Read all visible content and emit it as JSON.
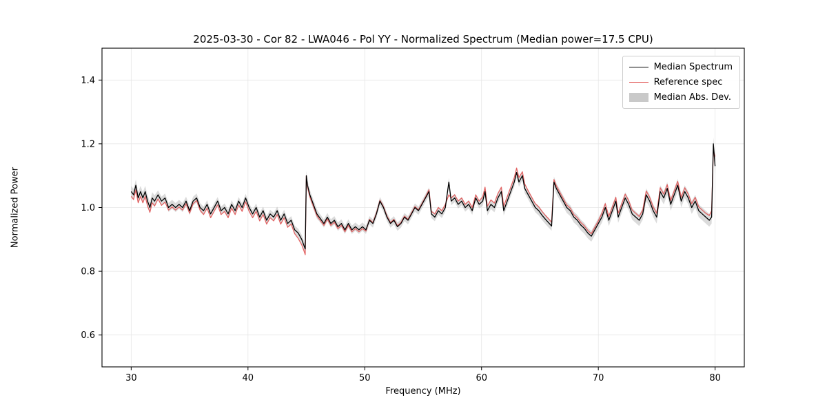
{
  "legend": {
    "items": [
      {
        "label": "Median Spectrum",
        "type": "line",
        "color": "#000000"
      },
      {
        "label": "Reference spec",
        "type": "line",
        "color": "#e04b4b"
      },
      {
        "label": "Median Abs. Dev.",
        "type": "patch",
        "color": "#c9c9c9"
      }
    ]
  },
  "chart_data": {
    "type": "line",
    "title": "2025-03-30 - Cor 82 - LWA046 - Pol YY - Normalized Spectrum (Median power=17.5 CPU)",
    "xlabel": "Frequency (MHz)",
    "ylabel": "Normalized Power",
    "xlim": [
      27.5,
      82.5
    ],
    "ylim": [
      0.5,
      1.5
    ],
    "xticks": [
      30,
      40,
      50,
      60,
      70,
      80
    ],
    "yticks": [
      0.6,
      0.8,
      1.0,
      1.2,
      1.4
    ],
    "grid": true,
    "x": [
      30,
      30.2,
      30.4,
      30.6,
      30.8,
      31,
      31.2,
      31.4,
      31.6,
      31.8,
      32,
      32.3,
      32.6,
      32.9,
      33.2,
      33.5,
      33.8,
      34.1,
      34.4,
      34.7,
      35,
      35.3,
      35.6,
      35.9,
      36.2,
      36.5,
      36.8,
      37.1,
      37.4,
      37.7,
      38,
      38.3,
      38.6,
      38.9,
      39.2,
      39.5,
      39.8,
      40.1,
      40.4,
      40.7,
      41,
      41.3,
      41.6,
      41.9,
      42.2,
      42.5,
      42.8,
      43.1,
      43.4,
      43.7,
      44,
      44.3,
      44.6,
      44.8,
      44.9,
      45,
      45.1,
      45.3,
      45.5,
      45.7,
      45.9,
      46.1,
      46.3,
      46.5,
      46.8,
      47.1,
      47.4,
      47.7,
      48,
      48.3,
      48.6,
      48.9,
      49.2,
      49.5,
      49.8,
      50.1,
      50.4,
      50.7,
      51,
      51.3,
      51.6,
      51.9,
      52.2,
      52.5,
      52.8,
      53.1,
      53.4,
      53.7,
      54,
      54.3,
      54.6,
      54.9,
      55.2,
      55.5,
      55.7,
      56,
      56.3,
      56.6,
      56.9,
      57.2,
      57.4,
      57.7,
      58,
      58.3,
      58.6,
      58.9,
      59.2,
      59.5,
      59.8,
      60.1,
      60.3,
      60.5,
      60.8,
      61.1,
      61.4,
      61.7,
      61.9,
      62.2,
      62.5,
      62.8,
      63,
      63.2,
      63.5,
      63.7,
      64,
      64.3,
      64.6,
      64.9,
      65.2,
      65.5,
      65.8,
      66,
      66.2,
      66.4,
      66.7,
      67,
      67.3,
      67.6,
      67.9,
      68.2,
      68.5,
      68.8,
      69.1,
      69.4,
      69.7,
      70,
      70.3,
      70.6,
      70.9,
      71.2,
      71.5,
      71.7,
      72,
      72.3,
      72.6,
      72.9,
      73.2,
      73.5,
      73.8,
      74.1,
      74.4,
      74.7,
      75,
      75.3,
      75.6,
      75.9,
      76.2,
      76.5,
      76.8,
      77.1,
      77.4,
      77.7,
      78,
      78.3,
      78.6,
      78.9,
      79.2,
      79.5,
      79.7,
      79.85,
      80
    ],
    "series": [
      {
        "name": "Median Spectrum",
        "color": "#000000",
        "values": [
          1.05,
          1.04,
          1.07,
          1.03,
          1.05,
          1.03,
          1.05,
          1.02,
          1.0,
          1.03,
          1.02,
          1.04,
          1.02,
          1.03,
          1.0,
          1.01,
          1.0,
          1.01,
          1.0,
          1.02,
          0.99,
          1.02,
          1.03,
          1.0,
          0.99,
          1.01,
          0.98,
          1.0,
          1.02,
          0.99,
          1.0,
          0.98,
          1.01,
          0.99,
          1.02,
          1.0,
          1.03,
          1.0,
          0.98,
          1.0,
          0.97,
          0.99,
          0.96,
          0.98,
          0.97,
          0.99,
          0.96,
          0.98,
          0.95,
          0.96,
          0.93,
          0.92,
          0.9,
          0.88,
          0.87,
          1.1,
          1.07,
          1.04,
          1.02,
          1.0,
          0.98,
          0.97,
          0.96,
          0.95,
          0.97,
          0.95,
          0.96,
          0.94,
          0.95,
          0.93,
          0.95,
          0.93,
          0.94,
          0.93,
          0.94,
          0.93,
          0.96,
          0.95,
          0.98,
          1.02,
          1.0,
          0.97,
          0.95,
          0.96,
          0.94,
          0.95,
          0.97,
          0.96,
          0.98,
          1.0,
          0.99,
          1.01,
          1.03,
          1.05,
          0.98,
          0.97,
          0.99,
          0.98,
          1.0,
          1.08,
          1.02,
          1.03,
          1.01,
          1.02,
          1.0,
          1.01,
          0.99,
          1.03,
          1.01,
          1.02,
          1.05,
          0.99,
          1.01,
          1.0,
          1.03,
          1.05,
          0.99,
          1.02,
          1.05,
          1.08,
          1.11,
          1.08,
          1.1,
          1.06,
          1.04,
          1.02,
          1.0,
          0.99,
          0.975,
          0.962,
          0.95,
          0.942,
          1.08,
          1.06,
          1.04,
          1.02,
          1.0,
          0.99,
          0.97,
          0.96,
          0.945,
          0.935,
          0.92,
          0.91,
          0.93,
          0.95,
          0.97,
          1.0,
          0.96,
          0.99,
          1.02,
          0.97,
          1.0,
          1.03,
          1.01,
          0.98,
          0.97,
          0.96,
          0.98,
          1.04,
          1.02,
          0.99,
          0.97,
          1.05,
          1.03,
          1.06,
          1.01,
          1.04,
          1.07,
          1.02,
          1.05,
          1.03,
          1.0,
          1.02,
          0.99,
          0.98,
          0.97,
          0.96,
          0.97,
          1.2,
          1.13
        ]
      },
      {
        "name": "Reference spec",
        "color": "#e04b4b",
        "values": [
          1.035,
          1.025,
          1.055,
          1.015,
          1.035,
          1.015,
          1.035,
          1.005,
          0.985,
          1.015,
          1.005,
          1.027,
          1.007,
          1.017,
          0.992,
          1.002,
          0.992,
          1.002,
          0.992,
          1.012,
          0.982,
          1.012,
          1.022,
          0.992,
          0.978,
          0.998,
          0.968,
          0.988,
          1.008,
          0.978,
          0.988,
          0.968,
          0.998,
          0.978,
          1.008,
          0.988,
          1.018,
          0.988,
          0.968,
          0.988,
          0.958,
          0.978,
          0.948,
          0.968,
          0.958,
          0.978,
          0.948,
          0.968,
          0.938,
          0.948,
          0.918,
          0.903,
          0.883,
          0.863,
          0.852,
          1.1,
          1.064,
          1.034,
          1.014,
          0.994,
          0.974,
          0.964,
          0.954,
          0.944,
          0.964,
          0.944,
          0.954,
          0.934,
          0.944,
          0.924,
          0.944,
          0.924,
          0.934,
          0.924,
          0.934,
          0.926,
          0.963,
          0.953,
          0.983,
          1.023,
          1.003,
          0.973,
          0.953,
          0.963,
          0.943,
          0.953,
          0.973,
          0.963,
          0.983,
          1.003,
          0.993,
          1.013,
          1.033,
          1.056,
          0.988,
          0.98,
          1.0,
          0.99,
          1.01,
          1.04,
          1.03,
          1.04,
          1.02,
          1.03,
          1.01,
          1.02,
          1.0,
          1.04,
          1.02,
          1.034,
          1.064,
          1.004,
          1.024,
          1.014,
          1.044,
          1.064,
          1.004,
          1.034,
          1.064,
          1.094,
          1.124,
          1.094,
          1.112,
          1.074,
          1.052,
          1.032,
          1.012,
          1.002,
          0.987,
          0.974,
          0.962,
          0.954,
          1.088,
          1.068,
          1.048,
          1.028,
          1.008,
          0.998,
          0.978,
          0.968,
          0.953,
          0.943,
          0.928,
          0.918,
          0.938,
          0.958,
          0.982,
          1.012,
          0.972,
          1.002,
          1.032,
          0.982,
          1.012,
          1.042,
          1.022,
          0.992,
          0.982,
          0.972,
          0.992,
          1.052,
          1.032,
          1.002,
          0.982,
          1.062,
          1.042,
          1.072,
          1.022,
          1.052,
          1.082,
          1.032,
          1.062,
          1.042,
          1.012,
          1.032,
          1.002,
          0.992,
          0.982,
          0.975,
          0.99,
          1.18,
          1.16
        ]
      }
    ],
    "band": {
      "name": "Median Abs. Dev.",
      "color": "#b0b0b0",
      "center": "Median Spectrum",
      "half_width": [
        0.018,
        0.018,
        0.018,
        0.018,
        0.018,
        0.018,
        0.018,
        0.018,
        0.018,
        0.018,
        0.018,
        0.014,
        0.014,
        0.014,
        0.014,
        0.014,
        0.014,
        0.014,
        0.014,
        0.014,
        0.014,
        0.014,
        0.014,
        0.014,
        0.013,
        0.013,
        0.013,
        0.013,
        0.013,
        0.013,
        0.013,
        0.013,
        0.013,
        0.013,
        0.013,
        0.013,
        0.013,
        0.013,
        0.013,
        0.013,
        0.013,
        0.013,
        0.013,
        0.013,
        0.013,
        0.013,
        0.013,
        0.013,
        0.013,
        0.013,
        0.013,
        0.014,
        0.014,
        0.014,
        0.014,
        0.015,
        0.015,
        0.015,
        0.015,
        0.015,
        0.015,
        0.013,
        0.013,
        0.013,
        0.013,
        0.013,
        0.013,
        0.013,
        0.013,
        0.013,
        0.013,
        0.013,
        0.013,
        0.013,
        0.013,
        0.013,
        0.013,
        0.013,
        0.013,
        0.013,
        0.013,
        0.013,
        0.013,
        0.013,
        0.013,
        0.013,
        0.013,
        0.013,
        0.013,
        0.013,
        0.013,
        0.013,
        0.013,
        0.013,
        0.013,
        0.013,
        0.013,
        0.013,
        0.013,
        0.013,
        0.013,
        0.013,
        0.013,
        0.013,
        0.013,
        0.013,
        0.013,
        0.013,
        0.013,
        0.015,
        0.015,
        0.015,
        0.015,
        0.015,
        0.015,
        0.015,
        0.015,
        0.015,
        0.015,
        0.015,
        0.015,
        0.015,
        0.015,
        0.015,
        0.015,
        0.015,
        0.015,
        0.015,
        0.015,
        0.015,
        0.015,
        0.015,
        0.017,
        0.017,
        0.017,
        0.017,
        0.017,
        0.017,
        0.017,
        0.017,
        0.017,
        0.017,
        0.017,
        0.017,
        0.017,
        0.017,
        0.018,
        0.018,
        0.018,
        0.018,
        0.018,
        0.018,
        0.018,
        0.018,
        0.018,
        0.018,
        0.018,
        0.018,
        0.018,
        0.02,
        0.02,
        0.02,
        0.02,
        0.02,
        0.02,
        0.02,
        0.02,
        0.02,
        0.02,
        0.02,
        0.02,
        0.02,
        0.02,
        0.02,
        0.02,
        0.02,
        0.02,
        0.02,
        0.02,
        0.02,
        0.028,
        0.025
      ]
    }
  }
}
